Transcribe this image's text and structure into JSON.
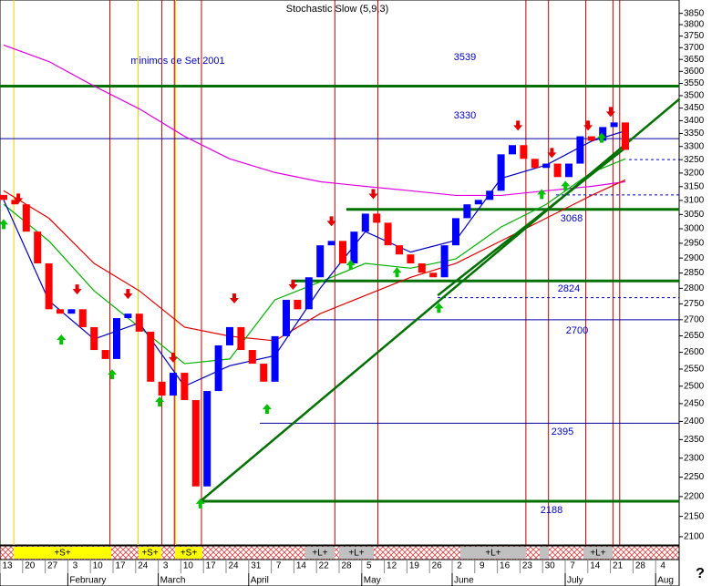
{
  "chart_data": {
    "type": "candlestick",
    "title": "Stochastic Slow (5,9,3)",
    "annotation": "minimos de Set 2001",
    "log_scale": true,
    "ylim": [
      2080,
      3910
    ],
    "yticks": [
      3850,
      3800,
      3750,
      3700,
      3650,
      3600,
      3550,
      3500,
      3450,
      3400,
      3350,
      3300,
      3250,
      3200,
      3150,
      3100,
      3050,
      3000,
      2950,
      2900,
      2850,
      2800,
      2750,
      2700,
      2650,
      2600,
      2550,
      2500,
      2450,
      2400,
      2350,
      2300,
      2250,
      2200,
      2150,
      2100
    ],
    "up_color": "#0000ff",
    "down_color": "#ff0000",
    "open": [
      3120,
      3102,
      3086,
      2990,
      2882,
      2733,
      2719,
      2733,
      2677,
      2607,
      2580,
      2705,
      2719,
      2663,
      2513,
      2473,
      2539,
      2460,
      2226,
      2486,
      2621,
      2677,
      2607,
      2566,
      2513,
      2649,
      2763,
      2733,
      2836,
      2943,
      2958,
      2882,
      2990,
      3053,
      3021,
      2943,
      2912,
      2882,
      2851,
      2836,
      2943,
      3037,
      3086,
      3102,
      3135,
      3270,
      3305,
      3253,
      3219,
      3235,
      3185,
      3235,
      3339,
      3322,
      3375,
      3393
    ],
    "close": [
      3102,
      3086,
      2990,
      2882,
      2733,
      2719,
      2733,
      2677,
      2607,
      2580,
      2705,
      2719,
      2663,
      2513,
      2473,
      2539,
      2460,
      2226,
      2486,
      2621,
      2677,
      2607,
      2566,
      2513,
      2649,
      2763,
      2733,
      2836,
      2943,
      2958,
      2882,
      2990,
      3053,
      3021,
      2943,
      2912,
      2882,
      2851,
      2836,
      2943,
      3037,
      3086,
      3102,
      3135,
      3270,
      3305,
      3253,
      3219,
      3235,
      3185,
      3235,
      3339,
      3322,
      3375,
      3393,
      3287
    ],
    "ma_x": [
      0,
      4,
      8,
      12,
      16,
      20,
      24,
      28,
      32,
      36,
      40,
      44,
      48,
      52,
      55
    ],
    "series": [
      {
        "color": "#e000e0",
        "values": [
          3711,
          3641,
          3539,
          3447,
          3339,
          3253,
          3202,
          3168,
          3151,
          3135,
          3118,
          3118,
          3135,
          3151,
          3168
        ]
      },
      {
        "color": "#e00000",
        "values": [
          3135,
          3037,
          2882,
          2792,
          2677,
          2649,
          2635,
          2719,
          2777,
          2836,
          2882,
          2958,
          3037,
          3118,
          3175
        ]
      },
      {
        "color": "#00b000",
        "values": [
          3086,
          2958,
          2792,
          2677,
          2566,
          2580,
          2763,
          2821,
          2882,
          2866,
          2897,
          3006,
          3086,
          3202,
          3253
        ]
      },
      {
        "color": "#0000c0",
        "values": [
          3102,
          2760,
          2640,
          2690,
          2500,
          2560,
          2590,
          2800,
          2990,
          2920,
          2960,
          3180,
          3230,
          3320,
          3360
        ]
      }
    ],
    "levels": [
      {
        "value": 3539,
        "color": "#007000",
        "thick": true
      },
      {
        "value": 3330,
        "color": "#0000a0",
        "thick": false
      },
      {
        "value": 3068,
        "color": "#007000",
        "thick": true
      },
      {
        "value": 2824,
        "color": "#007000",
        "thick": true
      },
      {
        "value": 2700,
        "color": "#0000a0",
        "thick": false
      },
      {
        "value": 2395,
        "color": "#0000a0",
        "thick": false
      },
      {
        "value": 2188,
        "color": "#007000",
        "thick": true
      }
    ],
    "dashed_levels": [
      3250,
      3120,
      2770
    ],
    "trendlines": [
      {
        "x": [
          17.4,
          59.8
        ],
        "values": [
          2188,
          3487
        ]
      },
      {
        "x": [
          38.4,
          55.3
        ],
        "values": [
          2777,
          3305
        ]
      }
    ],
    "red_vlines": [
      9.4,
      14,
      15.1,
      17.5,
      29.3,
      33.1,
      46.2,
      48.2,
      51.5,
      53.9,
      54.5
    ],
    "yellow_vlines": [
      0.9,
      11.9,
      15.2
    ],
    "signals_down": {
      "x": [
        1.3,
        6.5,
        11,
        15,
        20.4,
        25.6,
        29,
        32.7,
        45.5,
        48.5,
        51.7,
        53.7
      ],
      "values": [
        3102,
        2792,
        2777,
        2580,
        2763,
        2807,
        3021,
        3118,
        3375,
        3270,
        3375,
        3429
      ]
    },
    "signals_up": {
      "x": [
        0,
        5.1,
        9.6,
        13.8,
        17.4,
        23.3,
        30.7,
        34.8,
        38.5,
        47.6,
        49.7,
        52.9
      ],
      "values": [
        3021,
        2643,
        2539,
        2460,
        2186,
        2439,
        2882,
        2857,
        2742,
        3128,
        3158,
        3339
      ]
    },
    "strip_labels": [
      "+S+",
      "+S+",
      "+S+",
      "+L+",
      "+L+",
      "+L+",
      "+L+"
    ],
    "week_labels": [
      "13",
      "20",
      "27",
      "3",
      "10",
      "17",
      "24",
      "3",
      "10",
      "17",
      "24",
      "31",
      "7",
      "14",
      "22",
      "28",
      "5",
      "12",
      "19",
      "26",
      "2",
      "9",
      "16",
      "23",
      "30",
      "7",
      "14",
      "21",
      "28",
      "4"
    ],
    "months": [
      "February",
      "March",
      "April",
      "May",
      "June",
      "July",
      "Aug"
    ],
    "help": "?"
  }
}
